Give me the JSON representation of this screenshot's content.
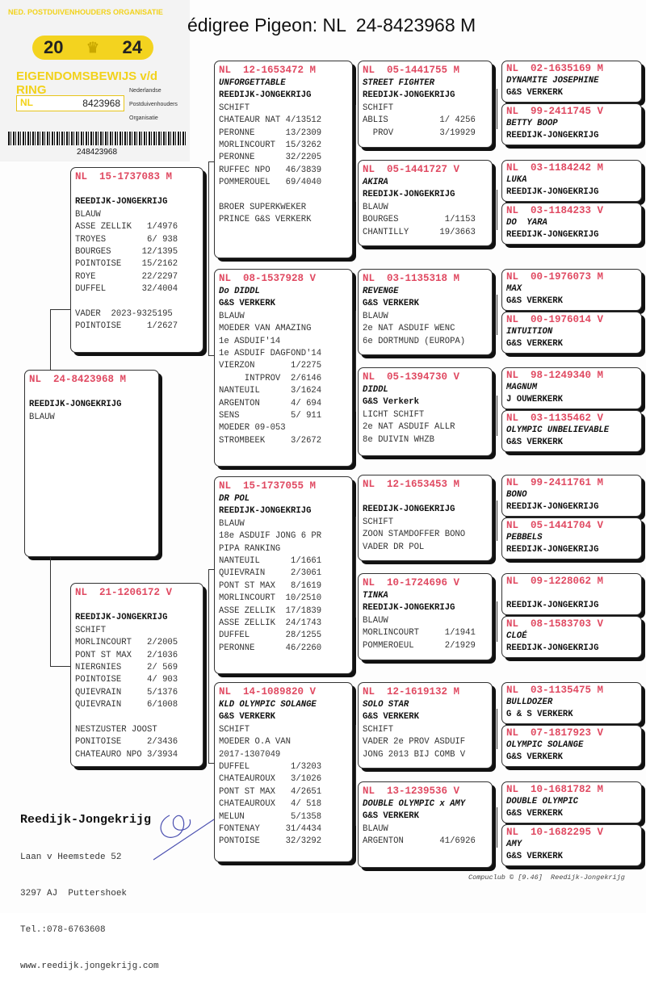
{
  "header": {
    "title": "édigree Pigeon: NL  24-8423968 M"
  },
  "ring_card": {
    "organisation": "NED. POSTDUIVENHOUDERS ORGANISATIE",
    "year_left": "20",
    "year_right": "24",
    "heading": "EIGENDOMSBEWIJS v/d RING",
    "country": "NL",
    "ring_number": "8423968",
    "npo_lines": [
      "Nederlandse",
      "Postduivenhouders",
      "Organisatie"
    ],
    "barcode_number": "248423968"
  },
  "boxes": [
    {
      "ring": "NL  24-8423968 M",
      "name": "",
      "breeder": "REEDIJK-JONGEKRIJG",
      "lines": [
        "BLAUW"
      ]
    },
    {
      "ring": "NL  15-1737083 M",
      "name": "",
      "breeder": "REEDIJK-JONGEKRIJG",
      "lines": [
        "BLAUW",
        "ASSE ZELLIK   1/4976",
        "TROYES        6/ 938",
        "BOURGES      12/1395",
        "POINTOISE    15/2162",
        "ROYE         22/2297",
        "DUFFEL       32/4004",
        "",
        "VADER  2023-9325195",
        "POINTOISE     1/2627"
      ]
    },
    {
      "ring": "NL  21-1206172 V",
      "name": "",
      "breeder": "REEDIJK-JONGEKRIJG",
      "lines": [
        "SCHIFT",
        "MORLINCOURT   2/2005",
        "PONT ST MAX   2/1036",
        "NIERGNIES     2/ 569",
        "POINTOISE     4/ 903",
        "QUIEVRAIN     5/1376",
        "QUIEVRAIN     6/1008",
        "",
        "NESTZUSTER JOOST",
        "PONITOISE     2/3436",
        "CHATEAURO NPO 3/3934"
      ]
    },
    {
      "ring": "NL  12-1653472 M",
      "name": "UNFORGETTABLE",
      "breeder": "REEDIJK-JONGEKRIJG",
      "lines": [
        "SCHIFT",
        "CHATEAUR NAT 4/13512",
        "PERONNE      13/2309",
        "MORLINCOURT  15/3262",
        "PERONNE      32/2205",
        "RUFFEC NPO   46/3839",
        "POMMEROUEL   69/4040",
        "",
        "BROER SUPERKWEKER",
        "PRINCE G&S VERKERK"
      ]
    },
    {
      "ring": "NL  08-1537928 V",
      "name": "Do DIDDL",
      "breeder": "G&S VERKERK",
      "lines": [
        "BLAUW",
        "MOEDER VAN AMAZING",
        "1e ASDUIF'14",
        "1e ASDUIF DAGFOND'14",
        "VIERZON       1/2275",
        "     INTPROV  2/6146",
        "NANTEUIL      3/1624",
        "ARGENTON      4/ 694",
        "SENS          5/ 911",
        "MOEDER 09-053",
        "STROMBEEK     3/2672"
      ]
    },
    {
      "ring": "NL  15-1737055 M",
      "name": "DR POL",
      "breeder": "REEDIJK-JONGEKRIJG",
      "lines": [
        "BLAUW",
        "18e ASDUIF JONG 6 PR",
        "PIPA RANKING",
        "NANTEUIL      1/1661",
        "QUIEVRAIN     2/3061",
        "PONT ST MAX   8/1619",
        "MORLINCOURT  10/2510",
        "ASSE ZELLIK  17/1839",
        "ASSE ZELLIK  24/1743",
        "DUFFEL       28/1255",
        "PERONNE      46/2260"
      ]
    },
    {
      "ring": "NL  14-1089820 V",
      "name": "KLD OLYMPIC SOLANGE",
      "breeder": "G&S VERKERK",
      "lines": [
        "SCHIFT",
        "MOEDER O.A VAN",
        "2017-1307049",
        "DUFFEL        1/3203",
        "CHATEAUROUX   3/1026",
        "PONT ST MAX   4/2651",
        "CHATEAUROUX   4/ 518",
        "MELUN         5/1358",
        "FONTENAY     31/4434",
        "PONTOISE     32/3292"
      ]
    },
    {
      "ring": "NL  05-1441755 M",
      "name": "STREET FIGHTER",
      "breeder": "REEDIJK-JONGEKRIJG",
      "lines": [
        "SCHIFT",
        "ABLIS          1/ 4256",
        "  PROV         3/19929"
      ]
    },
    {
      "ring": "NL  05-1441727 V",
      "name": "AKIRA",
      "breeder": "REEDIJK-JONGEKRIJG",
      "lines": [
        "BLAUW",
        "BOURGES         1/1153",
        "CHANTILLY      19/3663"
      ]
    },
    {
      "ring": "NL  03-1135318 M",
      "name": "REVENGE",
      "breeder": "G&S VERKERK",
      "lines": [
        "BLAUW",
        "2e NAT ASDUIF WENC",
        "6e DORTMUND (EUROPA)"
      ]
    },
    {
      "ring": "NL  05-1394730 V",
      "name": "DIDDL",
      "breeder": "G&S Verkerk",
      "lines": [
        "LICHT SCHIFT",
        "2e NAT ASDUIF ALLR",
        "8e DUIVIN WHZB"
      ]
    },
    {
      "ring": "NL  12-1653453 M",
      "name": "",
      "breeder": "REEDIJK-JONGEKRIJG",
      "lines": [
        "SCHIFT",
        "ZOON STAMDOFFER BONO",
        "VADER DR POL"
      ]
    },
    {
      "ring": "NL  10-1724696 V",
      "name": "TINKA",
      "breeder": "REEDIJK-JONGEKRIJG",
      "lines": [
        "BLAUW",
        "MORLINCOURT     1/1941",
        "POMMEROEUL      2/1929"
      ]
    },
    {
      "ring": "NL  12-1619132 M",
      "name": "SOLO STAR",
      "breeder": "G&S VERKERK",
      "lines": [
        "SCHIFT",
        "VADER 2e PROV ASDUIF",
        "JONG 2013 BIJ COMB V"
      ]
    },
    {
      "ring": "NL  13-1239536 V",
      "name": "DOUBLE OLYMPIC x AMY",
      "breeder": "G&S VERKERK",
      "lines": [
        "BLAUW",
        "ARGENTON       41/6926"
      ]
    },
    {
      "ring": "NL  02-1635169 M",
      "name": "DYNAMITE JOSEPHINE",
      "breeder": "G&S VERKERK",
      "lines": []
    },
    {
      "ring": "NL  99-2411745 V",
      "name": "BETTY BOOP",
      "breeder": "REEDIJK-JONGEKRIJG",
      "lines": []
    },
    {
      "ring": "NL  03-1184242 M",
      "name": "LUKA",
      "breeder": "REEDIJK-JONGEKRIJG",
      "lines": []
    },
    {
      "ring": "NL  03-1184233 V",
      "name": "DO  YARA",
      "breeder": "REEDIJK-JONGEKRIJG",
      "lines": []
    },
    {
      "ring": "NL  00-1976073 M",
      "name": "MAX",
      "breeder": "G&S VERKERK",
      "lines": []
    },
    {
      "ring": "NL  00-1976014 V",
      "name": "INTUITION",
      "breeder": "G&S VERKERK",
      "lines": []
    },
    {
      "ring": "NL  98-1249340 M",
      "name": "MAGNUM",
      "breeder": "J OUWERKERK",
      "lines": []
    },
    {
      "ring": "NL  03-1135462 V",
      "name": "OLYMPIC UNBELIEVABLE",
      "breeder": "G&S VERKERK",
      "lines": []
    },
    {
      "ring": "NL  99-2411761 M",
      "name": "BONO",
      "breeder": "REEDIJK-JONGEKRIJG",
      "lines": []
    },
    {
      "ring": "NL  05-1441704 V",
      "name": "PEBBELS",
      "breeder": "REEDIJK-JONGEKRIJG",
      "lines": []
    },
    {
      "ring": "NL  09-1228062 M",
      "name": "",
      "breeder": "REEDIJK-JONGEKRIJG",
      "lines": []
    },
    {
      "ring": "NL  08-1583703 V",
      "name": "CLOÉ",
      "breeder": "REEDIJK-JONGEKRIJG",
      "lines": []
    },
    {
      "ring": "NL  03-1135475 M",
      "name": "BULLDOZER",
      "breeder": "G & S VERKERK",
      "lines": []
    },
    {
      "ring": "NL  07-1817923 V",
      "name": "OLYMPIC SOLANGE",
      "breeder": "G&S VERKERK",
      "lines": []
    },
    {
      "ring": "NL  10-1681782 M",
      "name": "DOUBLE OLYMPIC",
      "breeder": "G&S VERKERK",
      "lines": []
    },
    {
      "ring": "NL  10-1682295 V",
      "name": "AMY",
      "breeder": "G&S VERKERK",
      "lines": []
    }
  ],
  "owner": {
    "name": "Reedijk-Jongekrijg",
    "address": "Laan v Heemstede 52",
    "city": "3297 AJ  Puttershoek",
    "phone": "Tel.:078-6763608",
    "website": "www.reedijk.jongekrijg.com"
  },
  "credit": "Compuclub © [9.46]  Reedijk-Jongekrijg",
  "colors": {
    "ring_number": "#e04a62",
    "card_yellow": "#f3d31f"
  }
}
